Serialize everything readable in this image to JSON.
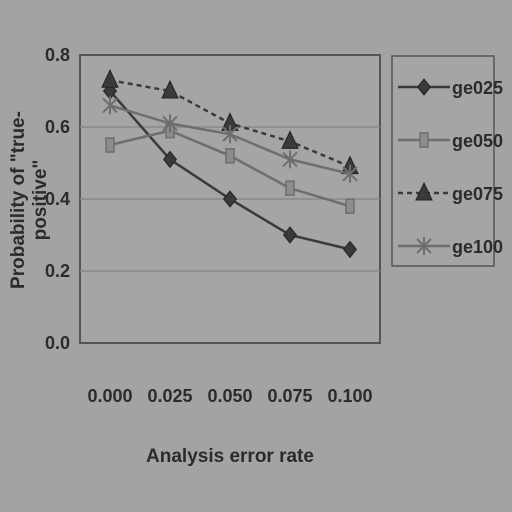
{
  "chart_data": {
    "type": "line",
    "title": "",
    "xlabel": "Analysis error rate",
    "ylabel_lines": [
      "Probability of \"true-",
      "positive\""
    ],
    "categories": [
      "0.000",
      "0.025",
      "0.050",
      "0.075",
      "0.100"
    ],
    "yticks": [
      "0.0",
      "0.2",
      "0.4",
      "0.6",
      "0.8"
    ],
    "ylim": [
      0,
      0.8
    ],
    "grid": true,
    "legend_position": "right",
    "series": [
      {
        "name": "ge025",
        "marker": "diamond",
        "dash": false,
        "color": "#3a3a3a",
        "values": [
          0.7,
          0.51,
          0.4,
          0.3,
          0.26
        ]
      },
      {
        "name": "ge050",
        "marker": "square",
        "dash": false,
        "color": "#6e6e6e",
        "values": [
          0.55,
          0.59,
          0.52,
          0.43,
          0.38
        ]
      },
      {
        "name": "ge075",
        "marker": "triangle",
        "dash": true,
        "color": "#3a3a3a",
        "values": [
          0.73,
          0.7,
          0.61,
          0.56,
          0.49
        ]
      },
      {
        "name": "ge100",
        "marker": "star",
        "dash": false,
        "color": "#6e6e6e",
        "values": [
          0.66,
          0.61,
          0.58,
          0.51,
          0.47
        ]
      }
    ]
  }
}
